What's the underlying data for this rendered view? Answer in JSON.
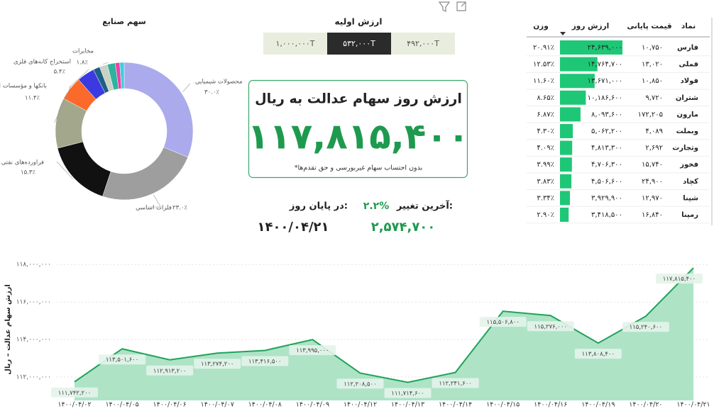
{
  "initial_value": {
    "title": "ارزش اولیه",
    "options": [
      "۱,۰۰۰,۰۰۰T",
      "۵۳۲,۰۰۰T",
      "۴۹۲,۰۰۰T"
    ],
    "selected": 1
  },
  "card": {
    "title": "ارزش روز سهام عدالت به ریال",
    "value": "۱۱۷,۸۱۵,۴۰۰",
    "note": "*بدون احتساب سهام غیربورسی و حق تقدم‌ها"
  },
  "stats": {
    "change_label": "آخرین تغییر:",
    "change": "۲.۲%",
    "close_label": "در پایان روز:",
    "change_amount": "۲,۵۷۴,۷۰۰",
    "date": "۱۴۰۰/۰۴/۲۱"
  },
  "table": {
    "headers": [
      "نماد",
      "قیمت پایانی",
      "ارزش روز",
      "وزن"
    ],
    "bar_color": "#1ec776",
    "rows": [
      {
        "symbol": "فارس",
        "price": "۱۰,۷۵۰",
        "value": 24639000,
        "value_label": "۲۴,۶۳۹,۰۰۰",
        "weight": "۲۰.۹۱٪"
      },
      {
        "symbol": "فملی",
        "price": "۱۳,۰۲۰",
        "value": 14764700,
        "value_label": "۱۴,۷۶۴,۷۰۰",
        "weight": "۱۲.۵۳٪"
      },
      {
        "symbol": "فولاد",
        "price": "۱۰,۸۵۰",
        "value": 13671000,
        "value_label": "۱۳,۶۷۱,۰۰۰",
        "weight": "۱۱.۶۰٪"
      },
      {
        "symbol": "شتران",
        "price": "۹,۷۲۰",
        "value": 10186600,
        "value_label": "۱۰,۱۸۶,۶۰۰",
        "weight": "۸.۶۵٪"
      },
      {
        "symbol": "مارون",
        "price": "۱۷۲,۲۰۵",
        "value": 8093600,
        "value_label": "۸,۰۹۳,۶۰۰",
        "weight": "۶.۸۷٪"
      },
      {
        "symbol": "وبملت",
        "price": "۴,۰۸۹",
        "value": 5062200,
        "value_label": "۵,۰۶۲,۲۰۰",
        "weight": "۴.۳۰٪"
      },
      {
        "symbol": "وتجارت",
        "price": "۲,۶۹۲",
        "value": 4813300,
        "value_label": "۴,۸۱۳,۳۰۰",
        "weight": "۴.۰۹٪"
      },
      {
        "symbol": "فخوز",
        "price": "۱۵,۷۴۰",
        "value": 4706300,
        "value_label": "۴,۷۰۶,۳۰۰",
        "weight": "۳.۹۹٪"
      },
      {
        "symbol": "کچاد",
        "price": "۲۴,۹۰۰",
        "value": 4506600,
        "value_label": "۴,۵۰۶,۶۰۰",
        "weight": "۳.۸۳٪"
      },
      {
        "symbol": "شپنا",
        "price": "۱۲,۹۷۰",
        "value": 3929900,
        "value_label": "۳,۹۲۹,۹۰۰",
        "weight": "۳.۳۴٪"
      },
      {
        "symbol": "رمپنا",
        "price": "۱۶,۸۴۰",
        "value": 3418500,
        "value_label": "۳,۴۱۸,۵۰۰",
        "weight": "۲.۹۰٪"
      }
    ]
  },
  "chart_data": [
    {
      "type": "pie",
      "title": "سهم صنایع",
      "donut": true,
      "categories": [
        "محصولات شیمیایی",
        "فلزات اساسی",
        "فراورده‌های نفتی",
        "بانکها و مؤسسات ا",
        "استخراج کانه‌های فلزی",
        null,
        null,
        "مخابرات",
        null,
        null,
        null
      ],
      "values": [
        30.0,
        23.0,
        15.3,
        11.4,
        5.4,
        4.0,
        1.5,
        1.8,
        1.8,
        1.0,
        1.0
      ],
      "value_labels": [
        "۳۰.۰٪",
        "۲۳.۰٪",
        "۱۵.۳٪",
        "۱۱.۴٪",
        "۵.۴٪",
        null,
        null,
        "۱.۸٪",
        null,
        null,
        null
      ],
      "colors": [
        "#abaaec",
        "#9e9e9e",
        "#111111",
        "#a3a78c",
        "#fb6a2a",
        "#3a3ae0",
        "#1f5f86",
        "#c9d3c2",
        "#2fb39e",
        "#f23fa3",
        "#3fd0e0"
      ]
    },
    {
      "type": "area",
      "y_label": "ارزش سهام عدالت – ریال",
      "color": "#1fa35a",
      "fill": "#aee3c6",
      "categories": [
        "۱۴۰۰/۰۴/۰۲",
        "۱۴۰۰/۰۴/۰۵",
        "۱۴۰۰/۰۴/۰۶",
        "۱۴۰۰/۰۴/۰۷",
        "۱۴۰۰/۰۴/۰۸",
        "۱۴۰۰/۰۴/۰۹",
        "۱۴۰۰/۰۴/۱۲",
        "۱۴۰۰/۰۴/۱۳",
        "۱۴۰۰/۰۴/۱۴",
        "۱۴۰۰/۰۴/۱۵",
        "۱۴۰۰/۰۴/۱۶",
        "۱۴۰۰/۰۴/۱۹",
        "۱۴۰۰/۰۴/۲۰",
        "۱۴۰۰/۰۴/۲۱"
      ],
      "values": [
        111742200,
        113501600,
        112913200,
        113274200,
        113416500,
        113995000,
        112208500,
        111714600,
        112241600,
        115506800,
        115276000,
        113808400,
        115240600,
        117815400
      ],
      "value_labels": [
        "۱۱۱,۷۴۲,۲۰۰",
        "۱۱۳,۵۰۱,۶۰۰",
        "۱۱۲,۹۱۳,۲۰۰",
        "۱۱۳,۲۷۴,۲۰۰",
        "۱۱۳,۴۱۶,۵۰۰",
        "۱۱۳,۹۹۵,۰۰۰",
        "۱۱۲,۲۰۸,۵۰۰",
        "۱۱۱,۷۱۴,۶۰۰",
        "۱۱۲,۲۴۱,۶۰۰",
        "۱۱۵,۵۰۶,۸۰۰",
        "۱۱۵,۲۷۶,۰۰۰",
        "۱۱۳,۸۰۸,۴۰۰",
        "۱۱۵,۲۴۰,۶۰۰",
        "۱۱۷,۸۱۵,۴۰۰"
      ],
      "ylim": [
        110750000,
        118500000
      ],
      "yticks": [
        {
          "value": 112000000,
          "label": "۱۱۲,۰۰۰,۰۰۰"
        },
        {
          "value": 114000000,
          "label": "۱۱۴,۰۰۰,۰۰۰"
        },
        {
          "value": 116000000,
          "label": "۱۱۶,۰۰۰,۰۰۰"
        },
        {
          "value": 118000000,
          "label": "۱۱۸,۰۰۰,۰۰۰"
        }
      ],
      "grid": true
    }
  ]
}
